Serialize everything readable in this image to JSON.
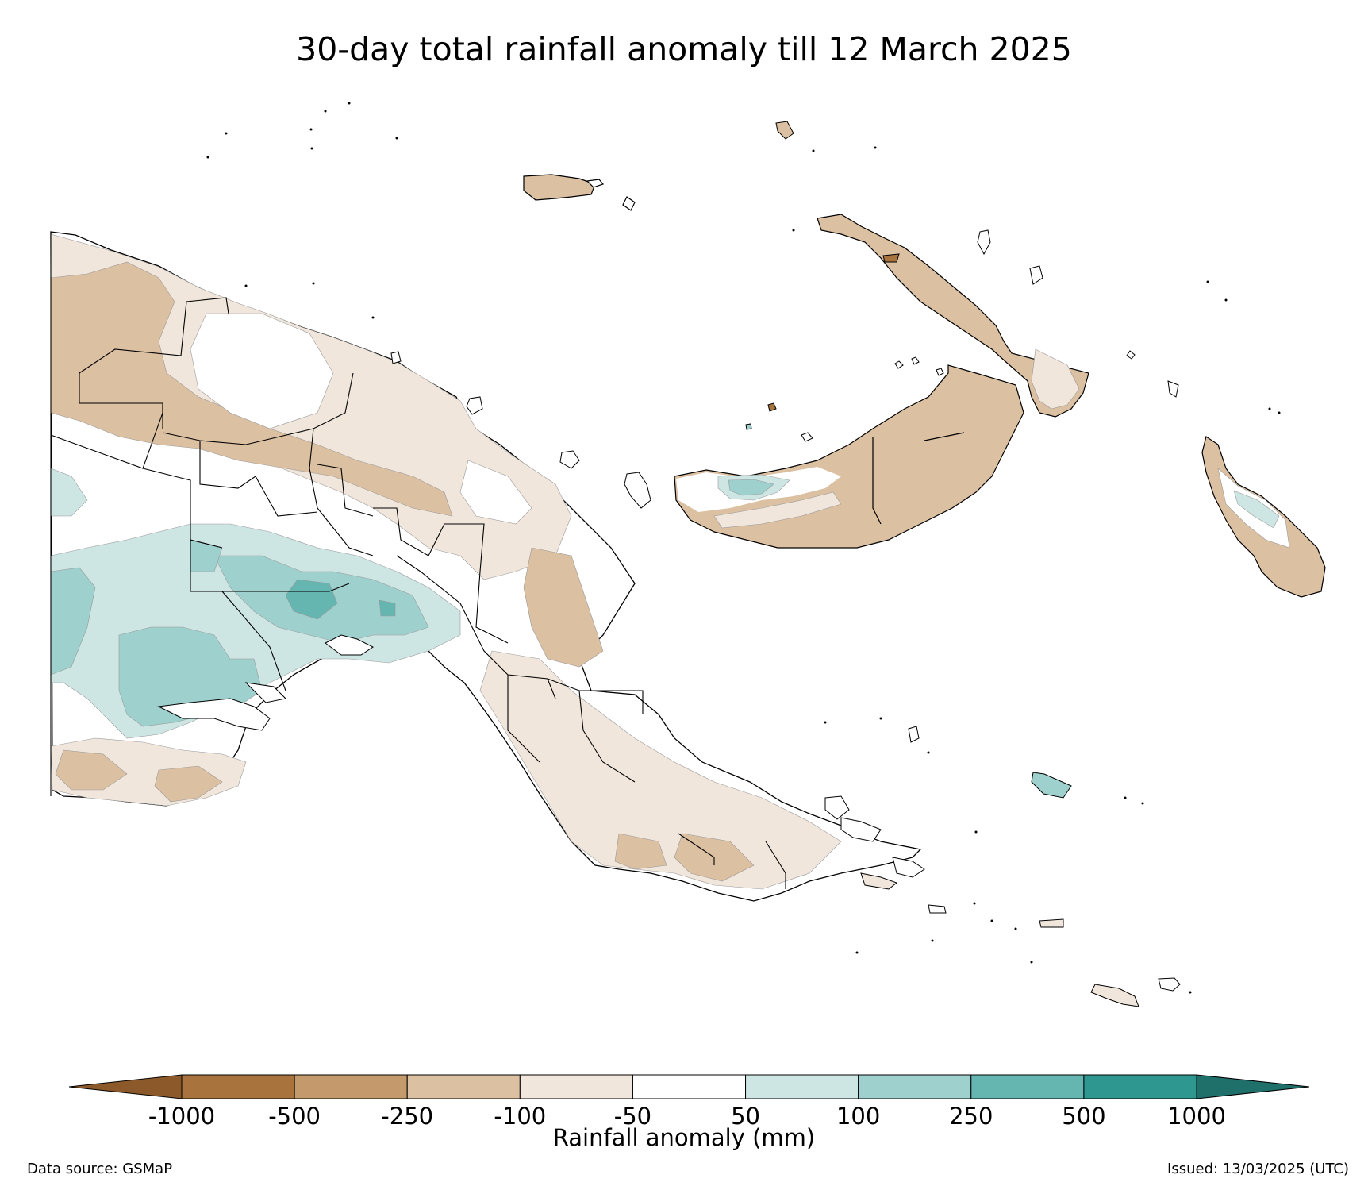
{
  "title": "30-day total rainfall anomaly till 12 March 2025",
  "legend": {
    "label": "Rainfall anomaly (mm)",
    "ticks": [
      "-1000",
      "-500",
      "-250",
      "-100",
      "-50",
      "50",
      "100",
      "250",
      "500",
      "1000"
    ],
    "colors": {
      "below_min": "#8c5a2a",
      "bins": [
        "#a9733d",
        "#c49a6c",
        "#dcc0a2",
        "#f1e6dc",
        "#ffffff",
        "#cde6e4",
        "#9ed0cd",
        "#65b5b1",
        "#2e9790"
      ],
      "above_max": "#1f6f6b"
    }
  },
  "source": "Data source: GSMaP",
  "issued": "Issued: 13/03/2025 (UTC)",
  "map_features": {
    "land_outline_color": "#000000",
    "province_boundaries": true,
    "anomaly_fill_classes_visible": [
      "-250",
      "-100",
      "-50",
      "50",
      "100",
      "250",
      "500"
    ]
  }
}
